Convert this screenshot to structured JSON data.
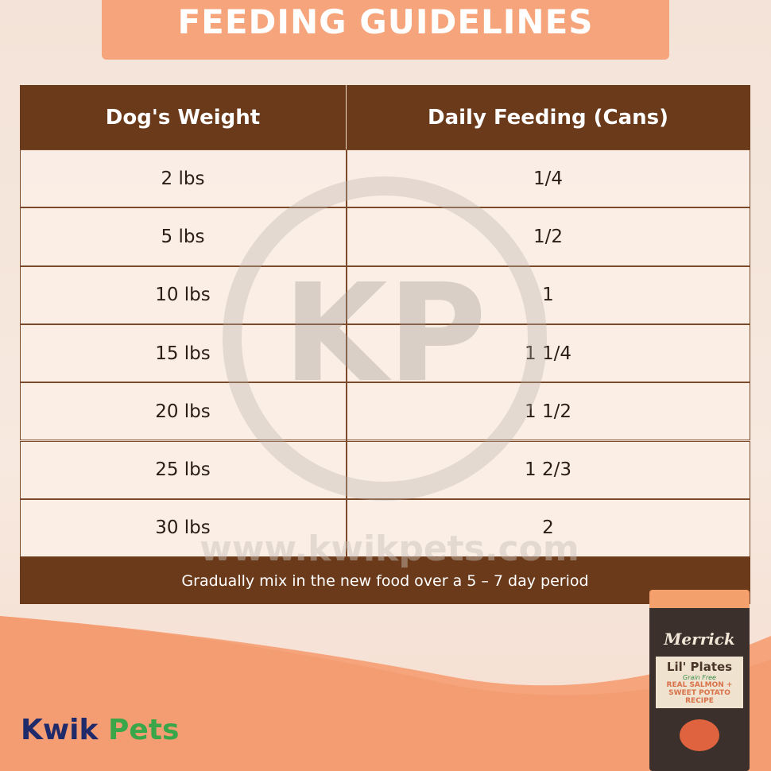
{
  "header": {
    "title": "FEEDING GUIDELINES"
  },
  "table": {
    "columns": [
      "Dog's Weight",
      "Daily Feeding (Cans)"
    ],
    "rows": [
      [
        "2 lbs",
        "1/4"
      ],
      [
        "5 lbs",
        "1/2"
      ],
      [
        "10 lbs",
        "1"
      ],
      [
        "15 lbs",
        "1 1/4"
      ],
      [
        "20 lbs",
        "1 1/2"
      ],
      [
        "25 lbs",
        "1 2/3"
      ],
      [
        "30 lbs",
        "2"
      ]
    ],
    "note": "Gradually mix in the new food over a 5 – 7 day period"
  },
  "watermark": {
    "mark": "KP",
    "url": "www.kwikpets.com"
  },
  "logo": {
    "first": "Kwik",
    "second": "Pets"
  },
  "product": {
    "brand": "Merrick",
    "line": "Lil' Plates",
    "tag": "Grain Free",
    "recipe": "REAL SALMON + SWEET POTATO RECIPE"
  }
}
